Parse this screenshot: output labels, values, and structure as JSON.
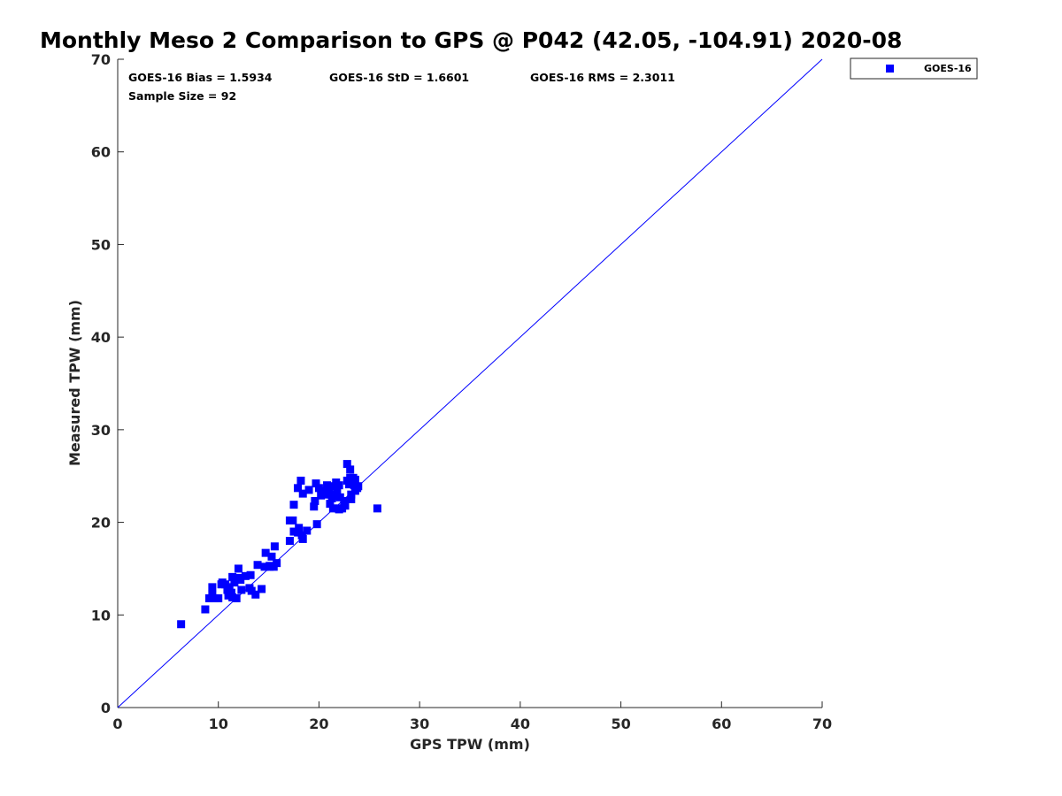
{
  "chart_data": {
    "type": "scatter",
    "title": "Monthly Meso 2 Comparison to GPS @ P042 (42.05, -104.91) 2020-08",
    "xlabel": "GPS TPW (mm)",
    "ylabel": "Measured TPW (mm)",
    "xlim": [
      0,
      70
    ],
    "ylim": [
      0,
      70
    ],
    "xticks": [
      0,
      10,
      20,
      30,
      40,
      50,
      60,
      70
    ],
    "yticks": [
      0,
      10,
      20,
      30,
      40,
      50,
      60,
      70
    ],
    "grid": false,
    "legend_position": "top-right, outside plot",
    "annotations": {
      "bias": "GOES-16 Bias = 1.5934",
      "std": "GOES-16 StD = 1.6601",
      "rms": "GOES-16 RMS = 2.3011",
      "sample": "Sample Size = 92"
    },
    "reference_line": {
      "type": "one-to-one",
      "color": "#0000ff"
    },
    "series": [
      {
        "name": "GOES-16",
        "color": "#0000ff",
        "marker": "square",
        "points": [
          [
            6.3,
            9.0
          ],
          [
            8.7,
            10.6
          ],
          [
            9.1,
            11.8
          ],
          [
            9.4,
            12.2
          ],
          [
            9.4,
            13.0
          ],
          [
            9.6,
            11.8
          ],
          [
            10.0,
            11.8
          ],
          [
            10.4,
            13.5
          ],
          [
            10.7,
            13.3
          ],
          [
            10.9,
            12.7
          ],
          [
            11.0,
            12.1
          ],
          [
            11.1,
            13.0
          ],
          [
            11.3,
            12.4
          ],
          [
            11.4,
            11.9
          ],
          [
            11.4,
            14.1
          ],
          [
            11.6,
            13.5
          ],
          [
            11.8,
            11.8
          ],
          [
            12.0,
            15.0
          ],
          [
            12.2,
            13.8
          ],
          [
            12.3,
            12.7
          ],
          [
            12.7,
            14.2
          ],
          [
            13.1,
            12.9
          ],
          [
            13.2,
            14.3
          ],
          [
            13.3,
            12.6
          ],
          [
            13.7,
            12.2
          ],
          [
            13.9,
            15.4
          ],
          [
            14.3,
            12.8
          ],
          [
            14.6,
            15.2
          ],
          [
            14.7,
            16.7
          ],
          [
            15.1,
            15.2
          ],
          [
            15.3,
            16.3
          ],
          [
            15.5,
            15.2
          ],
          [
            15.6,
            17.4
          ],
          [
            15.8,
            15.6
          ],
          [
            17.1,
            18.0
          ],
          [
            17.1,
            20.2
          ],
          [
            17.4,
            20.2
          ],
          [
            17.5,
            19.0
          ],
          [
            17.5,
            21.9
          ],
          [
            17.9,
            18.9
          ],
          [
            17.9,
            23.7
          ],
          [
            18.0,
            19.4
          ],
          [
            18.2,
            24.5
          ],
          [
            18.3,
            18.6
          ],
          [
            18.4,
            23.1
          ],
          [
            18.4,
            18.2
          ],
          [
            18.8,
            19.1
          ],
          [
            19.0,
            23.5
          ],
          [
            19.5,
            21.7
          ],
          [
            19.6,
            22.3
          ],
          [
            19.7,
            24.2
          ],
          [
            19.8,
            19.8
          ],
          [
            20.0,
            23.7
          ],
          [
            20.2,
            22.9
          ],
          [
            20.4,
            23.4
          ],
          [
            20.6,
            23.0
          ],
          [
            20.8,
            24.0
          ],
          [
            21.0,
            23.5
          ],
          [
            21.1,
            22.0
          ],
          [
            21.2,
            23.0
          ],
          [
            21.3,
            22.6
          ],
          [
            21.4,
            21.5
          ],
          [
            21.5,
            23.9
          ],
          [
            21.6,
            22.8
          ],
          [
            21.7,
            24.3
          ],
          [
            21.8,
            23.5
          ],
          [
            21.9,
            21.5
          ],
          [
            22.0,
            24.0
          ],
          [
            22.1,
            22.7
          ],
          [
            22.3,
            21.5
          ],
          [
            22.5,
            22.3
          ],
          [
            22.6,
            21.8
          ],
          [
            22.8,
            26.3
          ],
          [
            22.8,
            24.5
          ],
          [
            23.0,
            24.1
          ],
          [
            23.1,
            25.7
          ],
          [
            23.1,
            24.8
          ],
          [
            23.2,
            23.0
          ],
          [
            23.2,
            22.5
          ],
          [
            23.3,
            24.3
          ],
          [
            23.4,
            24.8
          ],
          [
            23.5,
            24.0
          ],
          [
            23.6,
            23.4
          ],
          [
            23.6,
            24.6
          ],
          [
            23.8,
            23.7
          ],
          [
            23.9,
            23.9
          ],
          [
            25.8,
            21.5
          ],
          [
            15.1,
            15.3
          ],
          [
            12.1,
            14.0
          ],
          [
            10.3,
            13.3
          ],
          [
            22.0,
            21.4
          ],
          [
            11.0,
            12.5
          ]
        ]
      }
    ]
  }
}
